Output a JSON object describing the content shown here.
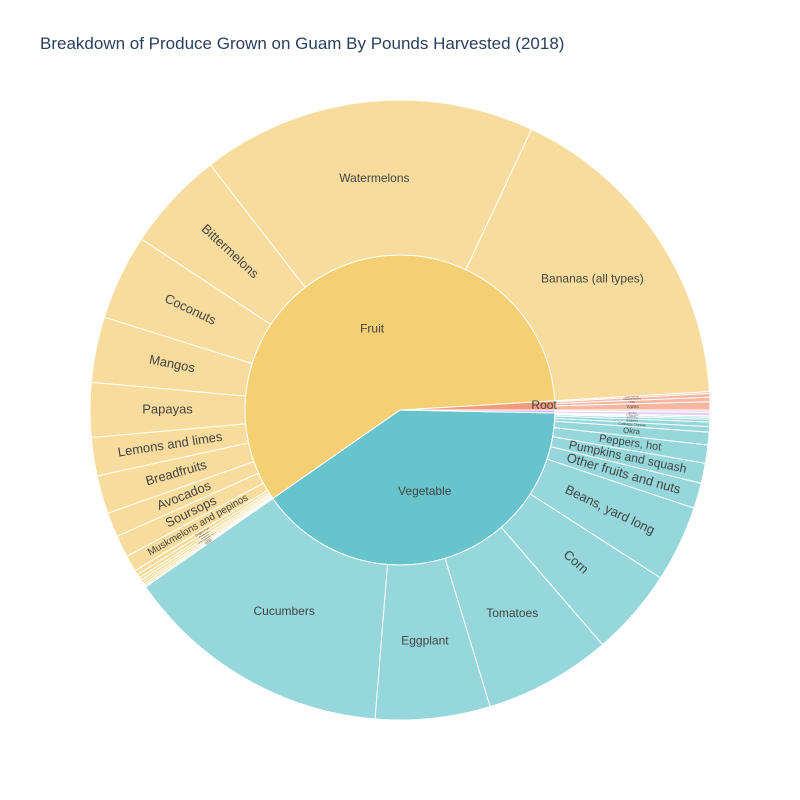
{
  "title": "Breakdown of Produce Grown on Guam By Pounds Harvested (2018)",
  "chart_data": {
    "type": "sunburst",
    "title": "Breakdown of Produce Grown on Guam By Pounds Harvested (2018)",
    "categories": [
      {
        "name": "Fruit",
        "color": "#f5cf73",
        "child_color": "#f7dc9d",
        "children": [
          {
            "name": "Bananas (all types)",
            "value": 180000
          },
          {
            "name": "Watermelons",
            "value": 184000
          },
          {
            "name": "Bittermelons",
            "value": 55000
          },
          {
            "name": "Coconuts",
            "value": 47000
          },
          {
            "name": "Mangos",
            "value": 36000
          },
          {
            "name": "Papayas",
            "value": 30000
          },
          {
            "name": "Lemons and limes",
            "value": 21000
          },
          {
            "name": "Breadfruits",
            "value": 21000
          },
          {
            "name": "Avocados",
            "value": 13500
          },
          {
            "name": "Soursops",
            "value": 12000
          },
          {
            "name": "Muskmelons and pepinos",
            "value": 9000
          },
          {
            "name": "Dragon Fruit",
            "value": 2500
          },
          {
            "name": "Pineapples",
            "value": 2000
          },
          {
            "name": "Tangerines",
            "value": 1500
          },
          {
            "name": "Other fruits and nuts",
            "value": 1500
          },
          {
            "name": "Limes",
            "value": 1200
          },
          {
            "name": "Oranges",
            "value": 1000
          },
          {
            "name": "Guavas",
            "value": 800
          }
        ]
      },
      {
        "name": "Vegetable",
        "color": "#67c4cc",
        "child_color": "#95d7db",
        "children": [
          {
            "name": "Cucumbers",
            "value": 148000
          },
          {
            "name": "Eggplant",
            "value": 63000
          },
          {
            "name": "Tomatoes",
            "value": 70000
          },
          {
            "name": "Corn",
            "value": 48000
          },
          {
            "name": "Beans, yard long",
            "value": 42000
          },
          {
            "name": "Other fruits and nuts",
            "value": 14000
          },
          {
            "name": "Pumpkins and squash",
            "value": 11000
          },
          {
            "name": "Peppers, hot",
            "value": 10000
          },
          {
            "name": "Okra",
            "value": 7000
          },
          {
            "name": "Cabbage, Chinese",
            "value": 3000
          },
          {
            "name": "Radishes",
            "value": 2500
          },
          {
            "name": "Beans, snap",
            "value": 1500
          },
          {
            "name": "Lettuce",
            "value": 1000
          },
          {
            "name": "Onions, green",
            "value": 800
          }
        ]
      },
      {
        "name": "Root",
        "color": "#f49b7d",
        "child_color": "#f7b6a0",
        "children": [
          {
            "name": "Yams",
            "value": 4500
          },
          {
            "name": "Taro",
            "value": 2500
          },
          {
            "name": "Cassava (tapioca)",
            "value": 2000
          },
          {
            "name": "Sweet potatoes",
            "value": 1000
          }
        ]
      },
      {
        "name": "",
        "color": "#d9b8ef",
        "child_color": "#e6cff5",
        "children": [
          {
            "name": "Betelnut",
            "value": 2000
          },
          {
            "name": "",
            "value": 1200
          }
        ]
      }
    ],
    "order": [
      "Root",
      "Fruit",
      "Vegetable",
      ""
    ],
    "start_angle_deg": 0,
    "direction": "counterclockwise"
  }
}
